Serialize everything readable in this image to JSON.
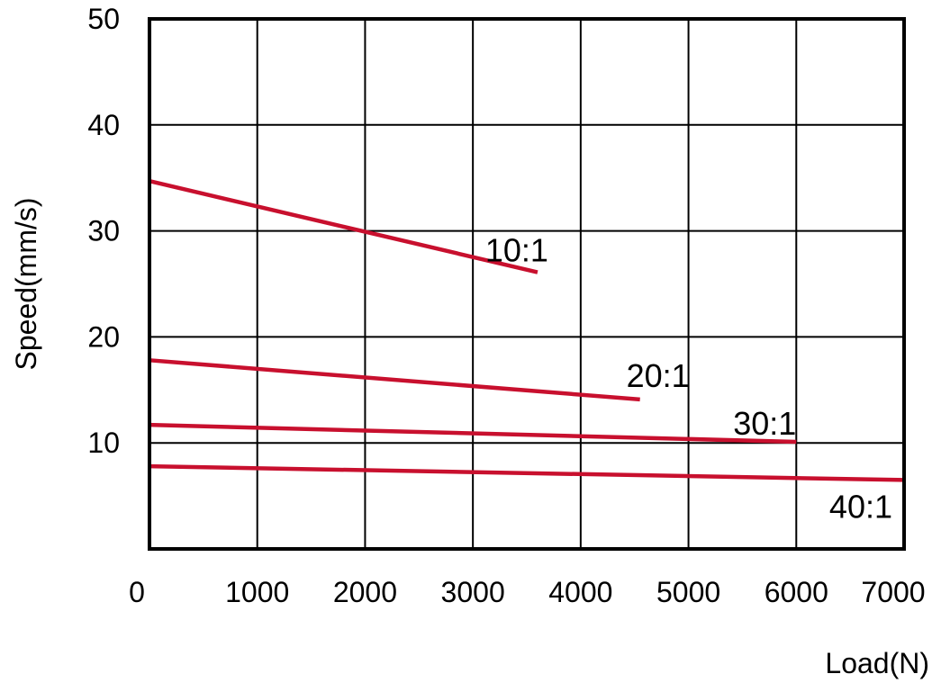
{
  "chart_data": {
    "type": "line",
    "title": "",
    "xlabel": "Load(N)",
    "ylabel": "Speed(mm/s)",
    "xlim": [
      0,
      7000
    ],
    "ylim": [
      0,
      50
    ],
    "x_ticks": [
      0,
      1000,
      2000,
      3000,
      4000,
      5000,
      6000,
      7000
    ],
    "x_tick_labels": [
      "0",
      "1000",
      "2000",
      "3000",
      "4000",
      "5000",
      "6000",
      "7000"
    ],
    "y_ticks": [
      10,
      20,
      30,
      40,
      50
    ],
    "y_tick_labels": [
      "10",
      "20",
      "30",
      "40",
      "50"
    ],
    "grid": true,
    "legend": "none",
    "line_color": "#c8102e",
    "series": [
      {
        "name": "10:1",
        "x": [
          0,
          3600
        ],
        "y": [
          34.7,
          26.1
        ]
      },
      {
        "name": "20:1",
        "x": [
          0,
          4550
        ],
        "y": [
          17.8,
          14.1
        ]
      },
      {
        "name": "30:1",
        "x": [
          0,
          6000
        ],
        "y": [
          11.7,
          10.1
        ]
      },
      {
        "name": "40:1",
        "x": [
          0,
          7000
        ],
        "y": [
          7.8,
          6.5
        ]
      }
    ]
  }
}
